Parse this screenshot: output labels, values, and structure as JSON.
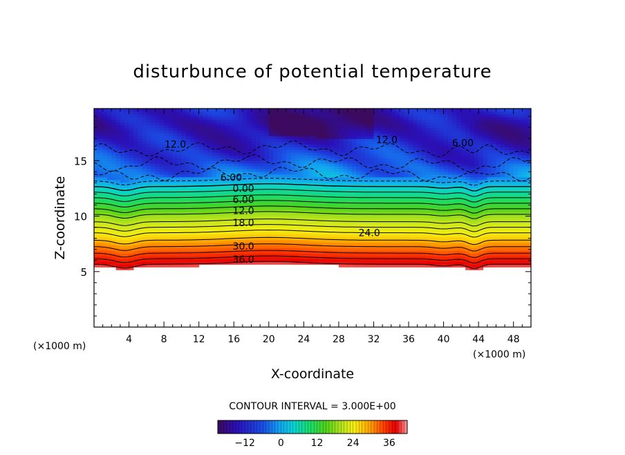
{
  "chart_data": {
    "type": "heatmap",
    "title": "disturbunce of potential temperature",
    "xlabel": "X-coordinate",
    "ylabel": "Z-coordinate",
    "x_unit": "(×1000 m)",
    "z_unit": "(×1000 m)",
    "xlim": [
      0,
      50
    ],
    "ylim": [
      0,
      19.7
    ],
    "x_ticks": [
      4,
      8,
      12,
      16,
      20,
      24,
      28,
      32,
      36,
      40,
      44,
      48
    ],
    "y_ticks": [
      5,
      10,
      15
    ],
    "contour_interval_text": "CONTOUR INTERVAL = 3.000E+00",
    "colorbar": {
      "range": [
        -21,
        42
      ],
      "ticks": [
        -12,
        0,
        12,
        24,
        36
      ]
    },
    "contour_labels": [
      {
        "text": "12.0",
        "x": 9.3,
        "z": 16.5
      },
      {
        "text": "12.0",
        "x": 33.5,
        "z": 16.9
      },
      {
        "text": "6.00",
        "x": 42.2,
        "z": 16.6
      },
      {
        "text": "6.00",
        "x": 15.7,
        "z": 13.5
      },
      {
        "text": "0.00",
        "x": 17.1,
        "z": 12.5
      },
      {
        "text": "6.00",
        "x": 17.1,
        "z": 11.5
      },
      {
        "text": "12.0",
        "x": 17.1,
        "z": 10.5
      },
      {
        "text": "18.0",
        "x": 17.1,
        "z": 9.4
      },
      {
        "text": "24.0",
        "x": 31.5,
        "z": 8.5
      },
      {
        "text": "30.0",
        "x": 17.1,
        "z": 7.3
      },
      {
        "text": "36.0",
        "x": 17.1,
        "z": 6.1
      }
    ],
    "profile": {
      "z": [
        5.5,
        6.0,
        6.5,
        7.0,
        7.5,
        8.0,
        8.5,
        9.0,
        9.5,
        10.0,
        10.5,
        11.0,
        11.5,
        12.0,
        12.5,
        13.0,
        13.5,
        14.0,
        14.5,
        15.0,
        15.5,
        16.0,
        16.5,
        17.0,
        17.5,
        18.0,
        18.5,
        19.0,
        19.7
      ],
      "theta_prime": [
        40,
        37,
        34,
        31,
        29,
        26,
        24,
        21,
        18,
        16,
        13,
        10,
        7,
        4,
        1,
        -2,
        -5,
        -7,
        -8,
        -10,
        -11,
        -12,
        -13,
        -14,
        -15,
        -16,
        -16,
        -15,
        -14
      ]
    }
  }
}
